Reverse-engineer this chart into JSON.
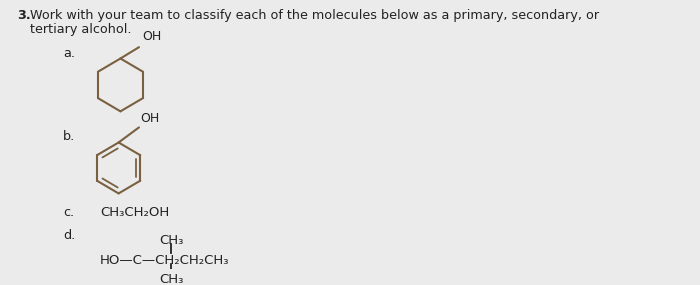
{
  "title_number": "3.",
  "title_text": "Work with your team to classify each of the molecules below as a primary, secondary, or\ntertiary alcohol.",
  "background_color": "#ebebeb",
  "text_color": "#222222",
  "ring_color": "#7a6040",
  "items": [
    "a.",
    "b.",
    "c.",
    "d."
  ],
  "item_c_formula": "CH₃CH₂OH",
  "item_d_line1": "CH₃",
  "item_d_line2": "HO—C—CH₂CH₂CH₃",
  "item_d_line3": "CH₃",
  "font_size_title": 9.2,
  "font_size_items": 9.2,
  "font_size_formula": 9.5,
  "font_size_oh": 9.0
}
